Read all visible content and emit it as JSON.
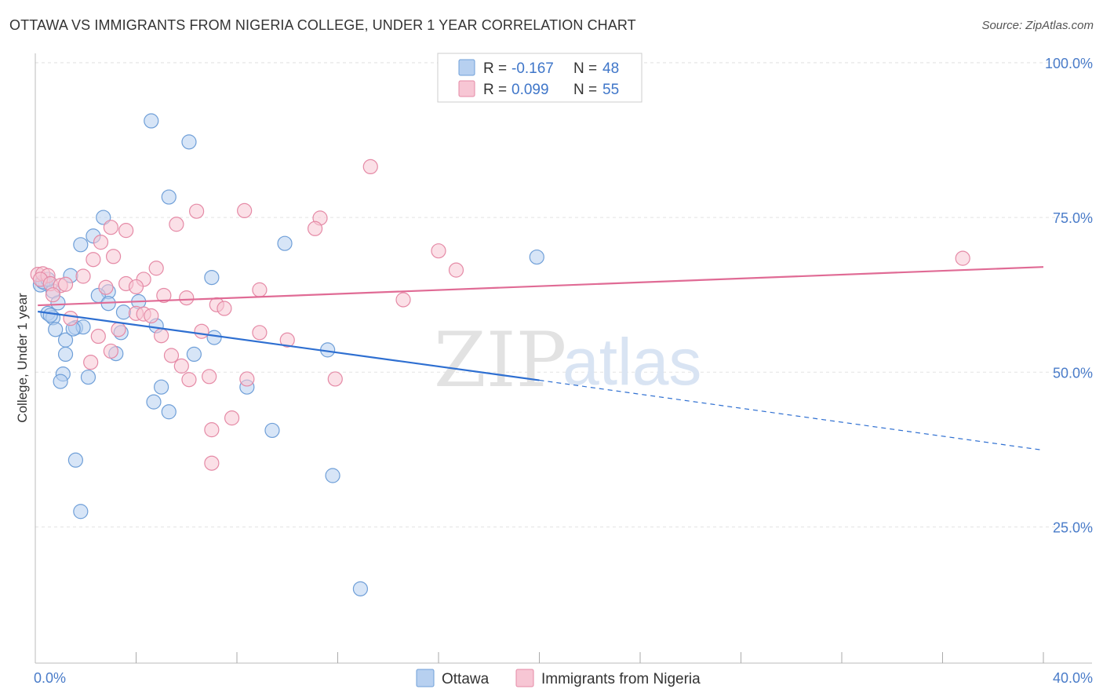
{
  "title": "OTTAWA VS IMMIGRANTS FROM NIGERIA COLLEGE, UNDER 1 YEAR CORRELATION CHART",
  "source": "Source: ZipAtlas.com",
  "watermark": {
    "zip": "ZIP",
    "atlas": "atlas"
  },
  "colors": {
    "ottawa_fill": "#b7d0f0",
    "ottawa_stroke": "#6f9fd8",
    "ottawa_line": "#2e6fd1",
    "nigeria_fill": "#f7c6d4",
    "nigeria_stroke": "#e58aa6",
    "nigeria_line": "#e06b95",
    "grid": "#e3e3e3",
    "tick_text": "#4a7cc9"
  },
  "legend": {
    "rows": [
      {
        "r_label": "R =",
        "r_value": "-0.167",
        "n_label": "N =",
        "n_value": "48"
      },
      {
        "r_label": "R =",
        "r_value": "0.099",
        "n_label": "N =",
        "n_value": "55"
      }
    ]
  },
  "chart_data": {
    "type": "scatter",
    "title": "OTTAWA VS IMMIGRANTS FROM NIGERIA COLLEGE, UNDER 1 YEAR CORRELATION CHART",
    "xlabel": "",
    "ylabel": "College, Under 1 year",
    "xlim": [
      0,
      40
    ],
    "ylim": [
      3,
      101
    ],
    "x_tick_labels": [
      "0.0%",
      "40.0%"
    ],
    "x_tick_values": [
      0,
      40
    ],
    "y_ticks": [
      {
        "value": 100,
        "label": "100.0%"
      },
      {
        "value": 75,
        "label": "75.0%"
      },
      {
        "value": 50,
        "label": "50.0%"
      },
      {
        "value": 25,
        "label": "25.0%"
      }
    ],
    "grid": true,
    "legend_position": "top-center",
    "series": [
      {
        "name": "Ottawa",
        "r": -0.167,
        "n": 48,
        "trend": {
          "x0": 0.1,
          "y0": 59.8,
          "x1": 20.0,
          "y1": 48.7,
          "dash_to_x": 40.0,
          "dash_to_y": 37.4
        },
        "points": [
          [
            4.6,
            90.6
          ],
          [
            6.1,
            87.2
          ],
          [
            5.3,
            78.3
          ],
          [
            2.7,
            75.0
          ],
          [
            2.3,
            72.0
          ],
          [
            1.8,
            70.6
          ],
          [
            9.9,
            70.8
          ],
          [
            19.9,
            68.6
          ],
          [
            0.4,
            64.4
          ],
          [
            0.2,
            64.1
          ],
          [
            1.4,
            65.6
          ],
          [
            7.0,
            65.3
          ],
          [
            0.7,
            63.1
          ],
          [
            2.9,
            63.0
          ],
          [
            2.5,
            62.4
          ],
          [
            4.1,
            61.4
          ],
          [
            0.9,
            61.2
          ],
          [
            2.9,
            61.1
          ],
          [
            0.5,
            59.5
          ],
          [
            3.5,
            59.7
          ],
          [
            0.7,
            58.8
          ],
          [
            4.8,
            57.5
          ],
          [
            1.6,
            57.2
          ],
          [
            1.9,
            57.3
          ],
          [
            0.8,
            56.9
          ],
          [
            3.4,
            56.4
          ],
          [
            7.1,
            55.6
          ],
          [
            1.2,
            55.2
          ],
          [
            11.6,
            53.6
          ],
          [
            3.2,
            53.0
          ],
          [
            1.2,
            52.9
          ],
          [
            6.3,
            52.9
          ],
          [
            1.1,
            49.7
          ],
          [
            2.1,
            49.2
          ],
          [
            1.0,
            48.5
          ],
          [
            5.0,
            47.6
          ],
          [
            8.4,
            47.6
          ],
          [
            4.7,
            45.2
          ],
          [
            5.3,
            43.6
          ],
          [
            9.4,
            40.6
          ],
          [
            1.6,
            35.8
          ],
          [
            11.8,
            33.3
          ],
          [
            1.8,
            27.5
          ],
          [
            12.9,
            15.0
          ],
          [
            0.3,
            64.6
          ],
          [
            0.5,
            65.0
          ],
          [
            0.6,
            59.2
          ],
          [
            1.5,
            57.0
          ]
        ]
      },
      {
        "name": "Immigrants from Nigeria",
        "r": 0.099,
        "n": 55,
        "trend": {
          "x0": 0.1,
          "y0": 60.8,
          "x1": 40.0,
          "y1": 67.0
        },
        "points": [
          [
            13.3,
            83.2
          ],
          [
            6.4,
            76.0
          ],
          [
            8.3,
            76.1
          ],
          [
            11.3,
            74.9
          ],
          [
            5.6,
            73.9
          ],
          [
            3.0,
            73.4
          ],
          [
            3.6,
            72.9
          ],
          [
            11.1,
            73.2
          ],
          [
            2.6,
            71.0
          ],
          [
            2.3,
            68.2
          ],
          [
            3.1,
            68.7
          ],
          [
            16.0,
            69.6
          ],
          [
            36.8,
            68.4
          ],
          [
            4.8,
            66.8
          ],
          [
            16.7,
            66.5
          ],
          [
            0.1,
            65.8
          ],
          [
            0.3,
            65.9
          ],
          [
            0.5,
            65.6
          ],
          [
            1.9,
            65.5
          ],
          [
            0.2,
            65.0
          ],
          [
            0.6,
            64.3
          ],
          [
            1.0,
            64.0
          ],
          [
            1.2,
            64.2
          ],
          [
            2.8,
            63.7
          ],
          [
            3.6,
            64.3
          ],
          [
            4.3,
            65.0
          ],
          [
            4.0,
            63.8
          ],
          [
            8.9,
            63.3
          ],
          [
            5.1,
            62.4
          ],
          [
            6.0,
            62.0
          ],
          [
            14.6,
            61.7
          ],
          [
            7.2,
            60.9
          ],
          [
            7.5,
            60.3
          ],
          [
            4.0,
            59.5
          ],
          [
            4.3,
            59.4
          ],
          [
            4.6,
            59.1
          ],
          [
            1.4,
            58.7
          ],
          [
            0.7,
            62.5
          ],
          [
            3.3,
            56.9
          ],
          [
            6.6,
            56.6
          ],
          [
            8.9,
            56.4
          ],
          [
            2.5,
            55.8
          ],
          [
            5.0,
            55.9
          ],
          [
            10.0,
            55.2
          ],
          [
            3.0,
            53.4
          ],
          [
            5.4,
            52.7
          ],
          [
            2.2,
            51.6
          ],
          [
            5.8,
            51.0
          ],
          [
            6.9,
            49.3
          ],
          [
            6.1,
            48.8
          ],
          [
            8.4,
            48.9
          ],
          [
            11.9,
            48.9
          ],
          [
            7.8,
            42.6
          ],
          [
            7.0,
            40.7
          ],
          [
            7.0,
            35.3
          ]
        ]
      }
    ]
  }
}
